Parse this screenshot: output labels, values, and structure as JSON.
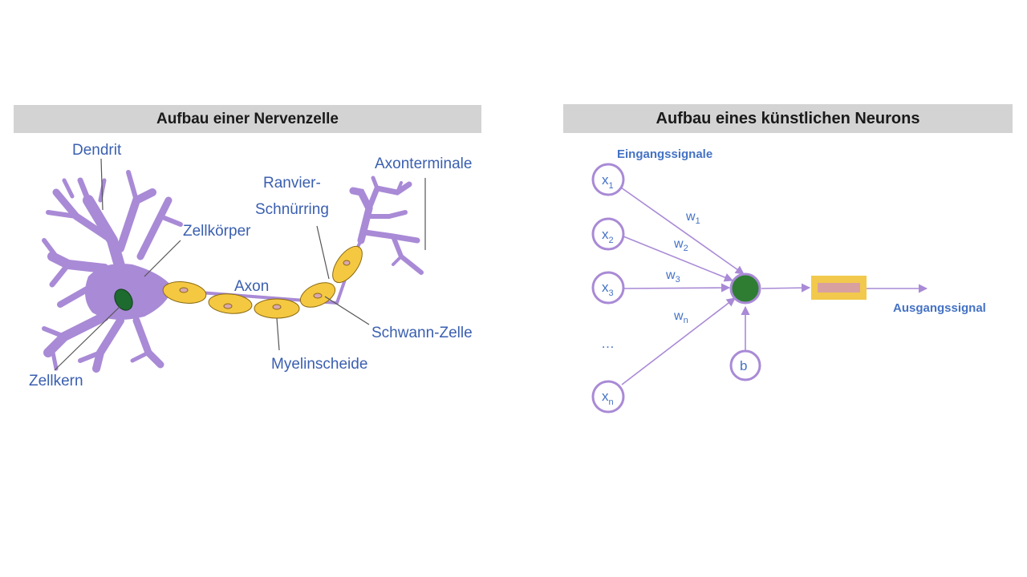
{
  "left_panel": {
    "title": "Aufbau einer Nervenzelle",
    "labels": {
      "dendrit": "Dendrit",
      "zellkoerper": "Zellkörper",
      "ranvier_1": "Ranvier-",
      "ranvier_2": "Schnürring",
      "axonterminale": "Axonterminale",
      "axon": "Axon",
      "schwann": "Schwann-Zelle",
      "myelin": "Myelinscheide",
      "zellkern": "Zellkern"
    }
  },
  "right_panel": {
    "title": "Aufbau eines künstlichen Neurons",
    "input_caption": "Eingangssignale",
    "output_caption": "Ausgangssignal",
    "inputs": [
      {
        "base": "x",
        "sub": "1"
      },
      {
        "base": "x",
        "sub": "2"
      },
      {
        "base": "x",
        "sub": "3"
      },
      {
        "base": "x",
        "sub": "n"
      }
    ],
    "weights": [
      {
        "base": "w",
        "sub": "1"
      },
      {
        "base": "w",
        "sub": "2"
      },
      {
        "base": "w",
        "sub": "3"
      },
      {
        "base": "w",
        "sub": "n"
      }
    ],
    "ellipsis": "…",
    "bias": "b"
  },
  "colors": {
    "neuron_body": "#a98ad6",
    "myelin": "#f5c842",
    "nucleus": "#1d6b2e",
    "label_text": "#3a5fb0",
    "arrow": "#a98ad6",
    "node_fill": "#2e7d32",
    "activation_box": "#f2c94c",
    "activation_inner": "#d9a0a0"
  }
}
